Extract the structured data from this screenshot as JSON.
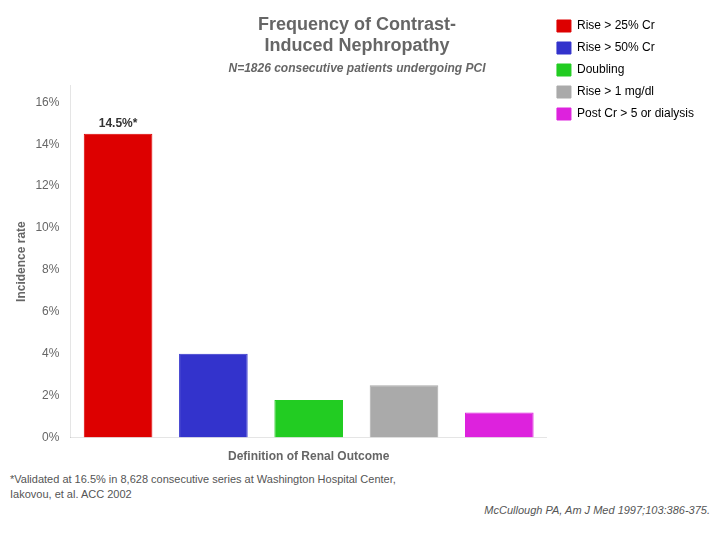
{
  "chart_data": {
    "type": "bar",
    "title": [
      "Frequency of Contrast-",
      "Induced Nephropathy"
    ],
    "subtitle": "N=1826 consecutive patients undergoing PCI",
    "xlabel": "Definition of Renal Outcome",
    "ylabel": "Incidence rate",
    "categories": [
      "Rise > 25% Cr",
      "Rise > 50% Cr",
      "Doubling",
      "Rise > 1 mg/dl",
      "Post Cr > 5 or dialysis"
    ],
    "values": [
      14.5,
      4.0,
      1.8,
      2.5,
      1.2
    ],
    "colors": [
      "#DD0000",
      "#3333CC",
      "#22CC22",
      "#AAAAAA",
      "#DD22DD"
    ],
    "ylim": [
      0,
      16.8
    ],
    "yticks": [
      {
        "value": 0,
        "label": "0%"
      },
      {
        "value": 2,
        "label": "2%"
      },
      {
        "value": 4,
        "label": "4%"
      },
      {
        "value": 6,
        "label": "6%"
      },
      {
        "value": 8,
        "label": "8%"
      },
      {
        "value": 10,
        "label": "10%"
      },
      {
        "value": 12,
        "label": "12%"
      },
      {
        "value": 14,
        "label": "14%"
      },
      {
        "value": 16,
        "label": "16%"
      }
    ],
    "grid": false,
    "legend": "upper right",
    "tick_labels": "y",
    "annotations": [
      {
        "text": "14.5%*",
        "category": "Rise > 25% Cr"
      }
    ],
    "footnotes": [
      "*Validated at 16.5% in 8,628 consecutive series at Washington Hospital Center,",
      "Iakovou, et al. ACC 2002"
    ],
    "citation": "McCullough PA, Am J Med 1997;103:386-375."
  }
}
